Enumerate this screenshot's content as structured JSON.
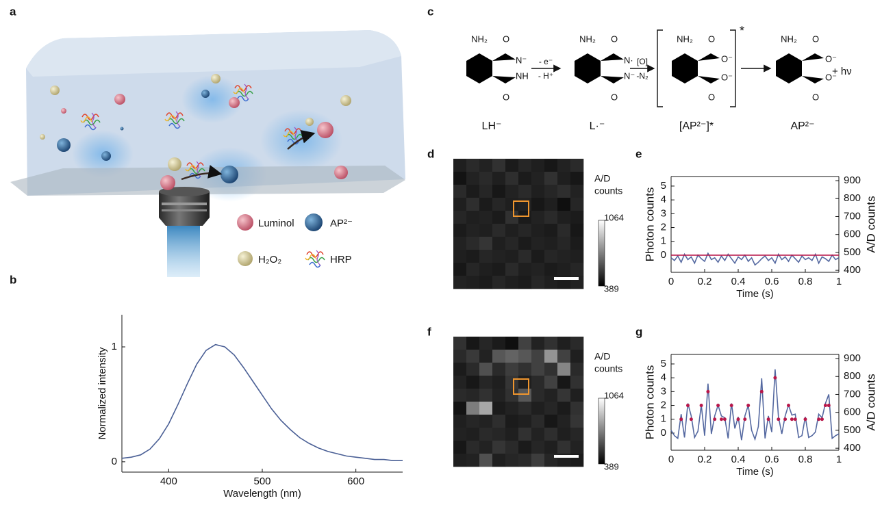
{
  "panel_labels": {
    "a": "a",
    "b": "b",
    "c": "c",
    "d": "d",
    "e": "e",
    "f": "f",
    "g": "g"
  },
  "panel_a": {
    "legend": [
      "Luminol",
      "AP²⁻",
      "H₂O₂",
      "HRP"
    ]
  },
  "panel_c": {
    "s1": [
      "NH₂",
      "O",
      "O",
      "N⁻",
      "NH"
    ],
    "s2": [
      "NH₂",
      "O",
      "O",
      "N·",
      "N⁻"
    ],
    "s3": [
      "NH₂",
      "O",
      "O⁻",
      "O",
      "O⁻"
    ],
    "s4": [
      "NH₂",
      "O",
      "O⁻",
      "O",
      "O⁻"
    ],
    "arrow1": [
      "- e⁻",
      "- H⁺"
    ],
    "arrow2": [
      "[O]",
      "-N₂"
    ],
    "star": "*",
    "photon": "+ hν",
    "names": [
      "LH⁻",
      "L·⁻",
      "[AP²⁻]*",
      "AP²⁻"
    ]
  },
  "chart_data": [
    {
      "type": "line",
      "xlabel": "Wavelength (nm)",
      "ylabel": "Normalized intensity",
      "xlim": [
        350,
        650
      ],
      "ylim": [
        -0.09,
        1.28
      ],
      "xticks": [
        400,
        500,
        600
      ],
      "yticks": [
        0,
        1
      ],
      "x": [
        350,
        360,
        370,
        380,
        390,
        400,
        410,
        420,
        430,
        440,
        450,
        460,
        470,
        480,
        490,
        500,
        510,
        520,
        530,
        540,
        550,
        560,
        570,
        580,
        590,
        600,
        610,
        620,
        630,
        640,
        650
      ],
      "series": [
        {
          "color": "#4a5f95",
          "values": [
            0.03,
            0.04,
            0.06,
            0.11,
            0.2,
            0.33,
            0.5,
            0.68,
            0.85,
            0.97,
            1.02,
            1.0,
            0.93,
            0.82,
            0.7,
            0.58,
            0.46,
            0.36,
            0.28,
            0.21,
            0.16,
            0.12,
            0.09,
            0.07,
            0.05,
            0.04,
            0.03,
            0.02,
            0.02,
            0.01,
            0.01
          ]
        }
      ]
    },
    {
      "type": "heatmap",
      "colorbar_label": [
        "A/D",
        "counts"
      ],
      "zlim": [
        389,
        1064
      ],
      "colorbar_ticks": [
        1064,
        389
      ],
      "values": [
        [
          470,
          500,
          480,
          520,
          460,
          490,
          470,
          450,
          480,
          500
        ],
        [
          440,
          480,
          500,
          470,
          510,
          460,
          480,
          520,
          470,
          450
        ],
        [
          500,
          460,
          490,
          450,
          480,
          500,
          470,
          490,
          510,
          480
        ],
        [
          470,
          510,
          460,
          490,
          470,
          480,
          450,
          470,
          430,
          490
        ],
        [
          490,
          470,
          480,
          460,
          520,
          460,
          480,
          500,
          470,
          460
        ],
        [
          460,
          480,
          470,
          500,
          470,
          490,
          470,
          460,
          500,
          450
        ],
        [
          480,
          500,
          530,
          470,
          490,
          460,
          480,
          470,
          490,
          460
        ],
        [
          470,
          460,
          490,
          480,
          470,
          500,
          460,
          490,
          480,
          470
        ],
        [
          450,
          490,
          470,
          460,
          500,
          470,
          480,
          460,
          470,
          490
        ],
        [
          480,
          470,
          460,
          490,
          470,
          460,
          490,
          470,
          460,
          480
        ]
      ]
    },
    {
      "type": "line",
      "xlabel": "Time (s)",
      "ylabel": "Photon counts",
      "y2label": "A/D counts",
      "xlim": [
        0,
        1
      ],
      "ylim": [
        -1.24,
        5.69
      ],
      "y2lim": [
        389,
        923
      ],
      "xticks": [
        0,
        0.2,
        0.4,
        0.6,
        0.8,
        1
      ],
      "yticks": [
        0,
        1,
        2,
        3,
        4,
        5
      ],
      "y2ticks": [
        400,
        500,
        600,
        700,
        800,
        900
      ],
      "series": [
        {
          "axis": "y2",
          "color": "#5468a0",
          "x": [
            0,
            0.02,
            0.04,
            0.06,
            0.08,
            0.1,
            0.12,
            0.14,
            0.16,
            0.18,
            0.2,
            0.22,
            0.24,
            0.26,
            0.28,
            0.3,
            0.32,
            0.34,
            0.36,
            0.38,
            0.4,
            0.42,
            0.44,
            0.46,
            0.48,
            0.5,
            0.52,
            0.54,
            0.56,
            0.58,
            0.6,
            0.62,
            0.64,
            0.66,
            0.68,
            0.7,
            0.72,
            0.74,
            0.76,
            0.78,
            0.8,
            0.82,
            0.84,
            0.86,
            0.88,
            0.9,
            0.92,
            0.94,
            0.96,
            0.98,
            1
          ],
          "values": [
            470,
            455,
            480,
            445,
            490,
            460,
            475,
            440,
            485,
            465,
            450,
            495,
            460,
            470,
            445,
            480,
            455,
            490,
            465,
            440,
            475,
            460,
            485,
            450,
            470,
            430,
            445,
            465,
            480,
            455,
            470,
            440,
            490,
            460,
            475,
            450,
            485,
            465,
            445,
            480,
            460,
            470,
            455,
            490,
            440,
            475,
            465,
            450,
            485,
            460,
            470
          ]
        },
        {
          "color": "#b8174a",
          "x": [
            0,
            1
          ],
          "values": [
            0,
            0
          ]
        }
      ]
    },
    {
      "type": "heatmap",
      "colorbar_label": [
        "A/D",
        "counts"
      ],
      "zlim": [
        389,
        1064
      ],
      "colorbar_ticks": [
        1064,
        389
      ],
      "values": [
        [
          520,
          450,
          490,
          460,
          430,
          560,
          480,
          520,
          470,
          500
        ],
        [
          500,
          540,
          480,
          620,
          650,
          620,
          560,
          780,
          560,
          470
        ],
        [
          460,
          500,
          600,
          500,
          550,
          520,
          560,
          520,
          740,
          500
        ],
        [
          480,
          450,
          490,
          470,
          530,
          470,
          500,
          560,
          450,
          520
        ],
        [
          500,
          490,
          520,
          480,
          520,
          620,
          500,
          480,
          530,
          470
        ],
        [
          440,
          720,
          830,
          460,
          480,
          500,
          470,
          490,
          460,
          520
        ],
        [
          470,
          490,
          480,
          510,
          460,
          470,
          500,
          450,
          480,
          530
        ],
        [
          480,
          470,
          500,
          490,
          470,
          520,
          480,
          510,
          470,
          490
        ],
        [
          450,
          500,
          480,
          530,
          500,
          460,
          490,
          470,
          520,
          480
        ],
        [
          470,
          480,
          600,
          470,
          490,
          500,
          550,
          490,
          470,
          460
        ]
      ]
    },
    {
      "type": "line",
      "xlabel": "Time (s)",
      "ylabel": "Photon counts",
      "y2label": "A/D counts",
      "xlim": [
        0,
        1
      ],
      "ylim": [
        -1.24,
        5.69
      ],
      "y2lim": [
        389,
        923
      ],
      "xticks": [
        0,
        0.2,
        0.4,
        0.6,
        0.8,
        1
      ],
      "yticks": [
        0,
        1,
        2,
        3,
        4,
        5
      ],
      "y2ticks": [
        400,
        500,
        600,
        700,
        800,
        900
      ],
      "series": [
        {
          "axis": "y2",
          "color": "#5468a0",
          "x": [
            0,
            0.02,
            0.04,
            0.06,
            0.08,
            0.1,
            0.12,
            0.14,
            0.16,
            0.18,
            0.2,
            0.22,
            0.24,
            0.26,
            0.28,
            0.3,
            0.32,
            0.34,
            0.36,
            0.38,
            0.4,
            0.42,
            0.44,
            0.46,
            0.48,
            0.5,
            0.52,
            0.54,
            0.56,
            0.58,
            0.6,
            0.62,
            0.64,
            0.66,
            0.68,
            0.7,
            0.72,
            0.74,
            0.76,
            0.78,
            0.8,
            0.82,
            0.84,
            0.86,
            0.88,
            0.9,
            0.92,
            0.94,
            0.96,
            0.98,
            1
          ],
          "values": [
            500,
            470,
            455,
            590,
            460,
            650,
            580,
            460,
            495,
            640,
            470,
            760,
            480,
            580,
            640,
            580,
            570,
            455,
            650,
            510,
            575,
            445,
            580,
            640,
            500,
            450,
            520,
            790,
            455,
            580,
            490,
            840,
            575,
            480,
            580,
            640,
            585,
            590,
            460,
            470,
            575,
            460,
            470,
            490,
            590,
            570,
            650,
            700,
            455,
            470,
            480
          ]
        },
        {
          "color": "#b8174a",
          "marker": "dot",
          "x": [
            0.06,
            0.1,
            0.12,
            0.18,
            0.22,
            0.26,
            0.28,
            0.3,
            0.32,
            0.36,
            0.4,
            0.44,
            0.46,
            0.54,
            0.58,
            0.62,
            0.64,
            0.68,
            0.7,
            0.72,
            0.74,
            0.8,
            0.88,
            0.9,
            0.92,
            0.94
          ],
          "values": [
            1,
            2,
            1,
            2,
            3,
            1,
            2,
            1,
            1,
            2,
            1,
            1,
            2,
            3,
            1,
            4,
            1,
            1,
            2,
            1,
            1,
            1,
            1,
            1,
            2,
            2
          ]
        }
      ]
    }
  ]
}
